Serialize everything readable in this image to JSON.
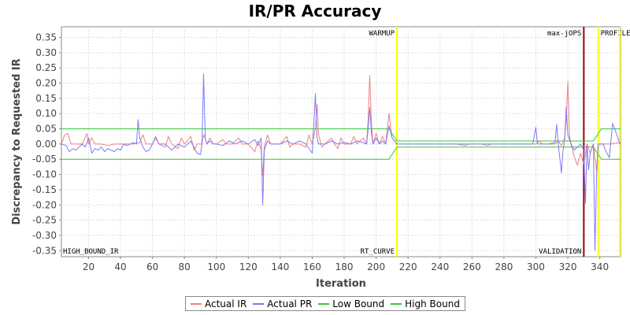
{
  "chart_data": {
    "type": "line",
    "title": "IR/PR Accuracy",
    "xlabel": "Iteration",
    "ylabel": "Discrepancy to Requested IR",
    "xlim": [
      3,
      353
    ],
    "ylim": [
      -0.37,
      0.385
    ],
    "grid": true,
    "legend_position": "bottom",
    "x_ticks": [
      20,
      40,
      60,
      80,
      100,
      120,
      140,
      160,
      180,
      200,
      220,
      240,
      260,
      280,
      300,
      320,
      340
    ],
    "y_ticks": [
      -0.35,
      -0.3,
      -0.25,
      -0.2,
      -0.15,
      -0.1,
      -0.05,
      0.0,
      0.05,
      0.1,
      0.15,
      0.2,
      0.25,
      0.3,
      0.35
    ],
    "y_tick_labels": [
      "-0.35",
      "-0.30",
      "-0.25",
      "-0.20",
      "-0.15",
      "-0.10",
      "-0.05",
      "0.00",
      "0.05",
      "0.10",
      "0.15",
      "0.20",
      "0.25",
      "0.30",
      "0.35"
    ],
    "series": [
      {
        "name": "Actual IR",
        "color": "#f08080",
        "points": [
          [
            3,
            0
          ],
          [
            5,
            0.03
          ],
          [
            7,
            0.035
          ],
          [
            9,
            0
          ],
          [
            12,
            0
          ],
          [
            16,
            0
          ],
          [
            19,
            0.035
          ],
          [
            20,
            0
          ],
          [
            22,
            0.02
          ],
          [
            24,
            0
          ],
          [
            28,
            0
          ],
          [
            32,
            -0.005
          ],
          [
            36,
            0
          ],
          [
            40,
            0
          ],
          [
            44,
            0
          ],
          [
            48,
            0
          ],
          [
            52,
            0.005
          ],
          [
            54,
            0.03
          ],
          [
            56,
            0
          ],
          [
            60,
            0
          ],
          [
            62,
            0.025
          ],
          [
            64,
            0
          ],
          [
            68,
            -0.01
          ],
          [
            70,
            0.025
          ],
          [
            72,
            0
          ],
          [
            76,
            -0.015
          ],
          [
            78,
            0.02
          ],
          [
            80,
            0
          ],
          [
            84,
            0.025
          ],
          [
            86,
            -0.02
          ],
          [
            88,
            0
          ],
          [
            91,
            0
          ],
          [
            92,
            0.03
          ],
          [
            93,
            0.02
          ],
          [
            94,
            0
          ],
          [
            96,
            0.02
          ],
          [
            98,
            0
          ],
          [
            100,
            0
          ],
          [
            104,
            0.015
          ],
          [
            106,
            0
          ],
          [
            110,
            0
          ],
          [
            114,
            0.02
          ],
          [
            116,
            0
          ],
          [
            120,
            0
          ],
          [
            124,
            -0.025
          ],
          [
            126,
            0.01
          ],
          [
            128,
            -0.02
          ],
          [
            129,
            -0.105
          ],
          [
            130,
            -0.01
          ],
          [
            132,
            0.03
          ],
          [
            134,
            0
          ],
          [
            136,
            0
          ],
          [
            140,
            0
          ],
          [
            144,
            0.025
          ],
          [
            146,
            -0.01
          ],
          [
            148,
            0
          ],
          [
            152,
            0
          ],
          [
            156,
            -0.01
          ],
          [
            158,
            0.03
          ],
          [
            160,
            0
          ],
          [
            162,
            0.05
          ],
          [
            163,
            0.13
          ],
          [
            164,
            0.03
          ],
          [
            166,
            -0.01
          ],
          [
            168,
            0
          ],
          [
            172,
            0.02
          ],
          [
            174,
            0
          ],
          [
            176,
            -0.015
          ],
          [
            178,
            0.02
          ],
          [
            180,
            0
          ],
          [
            184,
            0
          ],
          [
            186,
            0.025
          ],
          [
            188,
            0
          ],
          [
            192,
            0.02
          ],
          [
            194,
            0
          ],
          [
            195,
            0.08
          ],
          [
            196,
            0.225
          ],
          [
            197,
            0.08
          ],
          [
            198,
            0
          ],
          [
            200,
            0.035
          ],
          [
            202,
            0
          ],
          [
            204,
            0.025
          ],
          [
            206,
            0
          ],
          [
            208,
            0.1
          ],
          [
            209,
            0.06
          ],
          [
            210,
            0.02
          ],
          [
            213,
            0
          ],
          [
            216,
            0
          ],
          [
            220,
            0
          ],
          [
            230,
            0
          ],
          [
            240,
            0
          ],
          [
            250,
            0
          ],
          [
            256,
            -0.005
          ],
          [
            258,
            0
          ],
          [
            266,
            0
          ],
          [
            270,
            -0.005
          ],
          [
            272,
            0
          ],
          [
            280,
            0
          ],
          [
            290,
            0
          ],
          [
            296,
            0
          ],
          [
            300,
            0
          ],
          [
            302,
            0.01
          ],
          [
            304,
            0
          ],
          [
            312,
            0
          ],
          [
            314,
            0.01
          ],
          [
            316,
            -0.005
          ],
          [
            318,
            0.02
          ],
          [
            319,
            0.08
          ],
          [
            320,
            0.205
          ],
          [
            321,
            0.03
          ],
          [
            322,
            0
          ],
          [
            324,
            -0.04
          ],
          [
            326,
            -0.07
          ],
          [
            328,
            -0.03
          ],
          [
            330,
            -0.065
          ],
          [
            332,
            0
          ],
          [
            334,
            -0.03
          ],
          [
            336,
            0
          ],
          [
            338,
            -0.09
          ],
          [
            339,
            0
          ],
          [
            343,
            0
          ],
          [
            347,
            0
          ],
          [
            351,
            0.005
          ],
          [
            353,
            0
          ]
        ]
      },
      {
        "name": "Actual PR",
        "color": "#7b7bf4",
        "points": [
          [
            3,
            0
          ],
          [
            6,
            -0.005
          ],
          [
            8,
            -0.025
          ],
          [
            10,
            -0.015
          ],
          [
            12,
            -0.02
          ],
          [
            14,
            -0.01
          ],
          [
            16,
            0
          ],
          [
            18,
            -0.01
          ],
          [
            20,
            0.02
          ],
          [
            22,
            -0.03
          ],
          [
            24,
            -0.015
          ],
          [
            26,
            -0.02
          ],
          [
            28,
            -0.01
          ],
          [
            30,
            -0.025
          ],
          [
            32,
            -0.015
          ],
          [
            34,
            -0.02
          ],
          [
            36,
            -0.025
          ],
          [
            38,
            -0.015
          ],
          [
            40,
            -0.02
          ],
          [
            42,
            0
          ],
          [
            44,
            -0.005
          ],
          [
            46,
            0
          ],
          [
            48,
            0.005
          ],
          [
            50,
            0
          ],
          [
            51,
            0.08
          ],
          [
            52,
            0.02
          ],
          [
            54,
            -0.01
          ],
          [
            56,
            -0.025
          ],
          [
            58,
            -0.02
          ],
          [
            60,
            0
          ],
          [
            62,
            0.02
          ],
          [
            64,
            0
          ],
          [
            68,
            0
          ],
          [
            72,
            -0.02
          ],
          [
            76,
            0
          ],
          [
            80,
            -0.01
          ],
          [
            84,
            0.01
          ],
          [
            88,
            -0.03
          ],
          [
            90,
            -0.035
          ],
          [
            91,
            0
          ],
          [
            92,
            0.23
          ],
          [
            93,
            0.02
          ],
          [
            94,
            0
          ],
          [
            96,
            0.01
          ],
          [
            98,
            0
          ],
          [
            100,
            0
          ],
          [
            104,
            -0.005
          ],
          [
            108,
            0.01
          ],
          [
            112,
            0
          ],
          [
            116,
            0.01
          ],
          [
            120,
            0
          ],
          [
            124,
            0.015
          ],
          [
            126,
            -0.005
          ],
          [
            128,
            0.02
          ],
          [
            129,
            -0.2
          ],
          [
            130,
            -0.02
          ],
          [
            132,
            0.01
          ],
          [
            134,
            0
          ],
          [
            140,
            0
          ],
          [
            144,
            0.01
          ],
          [
            148,
            0
          ],
          [
            152,
            0.01
          ],
          [
            156,
            0
          ],
          [
            160,
            -0.03
          ],
          [
            162,
            0.165
          ],
          [
            163,
            0.02
          ],
          [
            164,
            0
          ],
          [
            168,
            0
          ],
          [
            172,
            0.01
          ],
          [
            176,
            0
          ],
          [
            180,
            0.005
          ],
          [
            184,
            0
          ],
          [
            188,
            0.01
          ],
          [
            192,
            0.005
          ],
          [
            194,
            0
          ],
          [
            195,
            0.05
          ],
          [
            196,
            0.12
          ],
          [
            197,
            0.04
          ],
          [
            198,
            0
          ],
          [
            200,
            0.02
          ],
          [
            202,
            0
          ],
          [
            204,
            0.01
          ],
          [
            206,
            0
          ],
          [
            208,
            0.06
          ],
          [
            210,
            0.02
          ],
          [
            213,
            0
          ],
          [
            220,
            0
          ],
          [
            240,
            0
          ],
          [
            260,
            0
          ],
          [
            280,
            0
          ],
          [
            296,
            0
          ],
          [
            298,
            0
          ],
          [
            300,
            0.055
          ],
          [
            301,
            0
          ],
          [
            304,
            0
          ],
          [
            308,
            0
          ],
          [
            312,
            0.005
          ],
          [
            313,
            0.065
          ],
          [
            314,
            0
          ],
          [
            316,
            -0.095
          ],
          [
            317,
            -0.02
          ],
          [
            318,
            0.01
          ],
          [
            319,
            0.12
          ],
          [
            320,
            0.03
          ],
          [
            322,
            0
          ],
          [
            324,
            -0.02
          ],
          [
            326,
            -0.01
          ],
          [
            328,
            0
          ],
          [
            330,
            -0.02
          ],
          [
            331,
            -0.195
          ],
          [
            332,
            0
          ],
          [
            333,
            -0.085
          ],
          [
            334,
            -0.03
          ],
          [
            336,
            0
          ],
          [
            337,
            -0.35
          ],
          [
            338,
            -0.1
          ],
          [
            339,
            0
          ],
          [
            342,
            0
          ],
          [
            344,
            -0.025
          ],
          [
            346,
            -0.045
          ],
          [
            348,
            0.068
          ],
          [
            350,
            0.04
          ],
          [
            352,
            0.01
          ],
          [
            353,
            0
          ]
        ]
      },
      {
        "name": "Low Bound",
        "color": "#33cc33",
        "points": [
          [
            3,
            -0.05
          ],
          [
            208,
            -0.05
          ],
          [
            213,
            -0.01
          ],
          [
            336,
            -0.01
          ],
          [
            341,
            -0.05
          ],
          [
            353,
            -0.05
          ]
        ]
      },
      {
        "name": "High Bound",
        "color": "#33cc33",
        "points": [
          [
            3,
            0.05
          ],
          [
            208,
            0.05
          ],
          [
            213,
            0.01
          ],
          [
            336,
            0.01
          ],
          [
            341,
            0.05
          ],
          [
            353,
            0.05
          ]
        ]
      }
    ],
    "markers": [
      {
        "x": 213,
        "color": "#ffff00",
        "label": "WARMUP",
        "label_pos": "top-left"
      },
      {
        "x": 213,
        "color": "#ffff00",
        "label": "RT_CURVE",
        "label_pos": "bottom-left"
      },
      {
        "x": 330,
        "color": "#a00000",
        "label": "max-jOPS",
        "label_pos": "top-left"
      },
      {
        "x": 330,
        "color": "#a00000",
        "label": "VALIDATION",
        "label_pos": "bottom-left"
      },
      {
        "x": 339,
        "color": "#ffff00",
        "label": "PROFILE",
        "label_pos": "top-right"
      },
      {
        "x": 353,
        "color": "#ffff00",
        "label": "",
        "label_pos": "none"
      }
    ],
    "corner_label": "HIGH_BOUND_IR"
  }
}
